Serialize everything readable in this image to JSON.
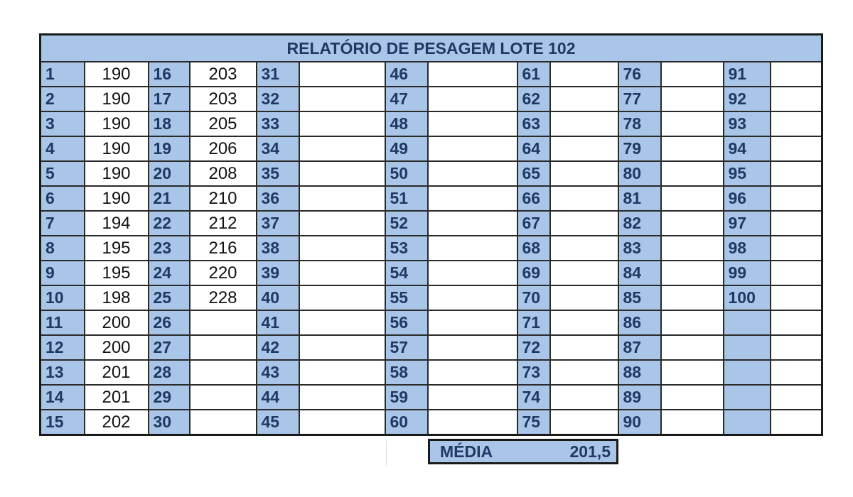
{
  "title": "RELATÓRIO DE PESAGEM LOTE 102",
  "colors": {
    "header_fill": "#a9c6e8",
    "header_text": "#1f3864",
    "border": "#1a1a1a"
  },
  "columns": [
    {
      "start": 1,
      "values": [
        "190",
        "190",
        "190",
        "190",
        "190",
        "190",
        "194",
        "195",
        "195",
        "198",
        "200",
        "200",
        "201",
        "201",
        "202"
      ]
    },
    {
      "start": 16,
      "values": [
        "203",
        "203",
        "205",
        "206",
        "208",
        "210",
        "212",
        "216",
        "220",
        "228",
        "",
        "",
        "",
        "",
        ""
      ]
    },
    {
      "start": 31,
      "values": [
        "",
        "",
        "",
        "",
        "",
        "",
        "",
        "",
        "",
        "",
        "",
        "",
        "",
        "",
        ""
      ]
    },
    {
      "start": 46,
      "values": [
        "",
        "",
        "",
        "",
        "",
        "",
        "",
        "",
        "",
        "",
        "",
        "",
        "",
        "",
        ""
      ]
    },
    {
      "start": 61,
      "values": [
        "",
        "",
        "",
        "",
        "",
        "",
        "",
        "",
        "",
        "",
        "",
        "",
        "",
        "",
        ""
      ]
    },
    {
      "start": 76,
      "values": [
        "",
        "",
        "",
        "",
        "",
        "",
        "",
        "",
        "",
        "",
        "",
        "",
        "",
        "",
        ""
      ]
    },
    {
      "start": 91,
      "values": [
        "",
        "",
        "",
        "",
        "",
        "",
        "",
        "",
        "",
        "",
        "",
        "",
        "",
        "",
        ""
      ],
      "max": 100
    }
  ],
  "summary": {
    "label": "MÉDIA",
    "value": "201,5"
  }
}
